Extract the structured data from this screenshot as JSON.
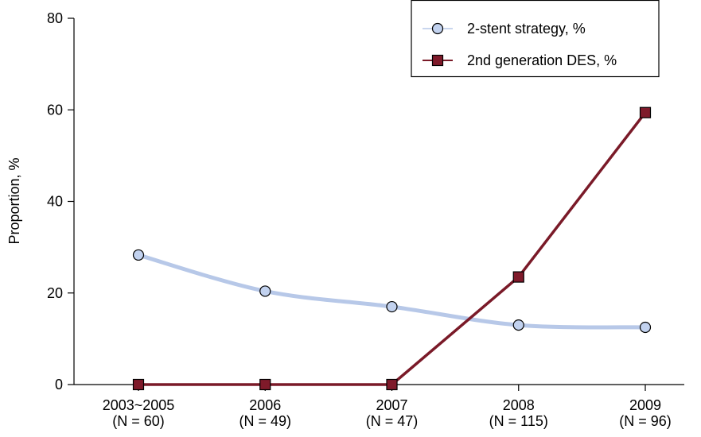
{
  "chart_data": {
    "type": "line",
    "ylabel": "Proportion, %",
    "xlabel": "",
    "ylim": [
      0,
      80
    ],
    "yticks": [
      0,
      20,
      40,
      60,
      80
    ],
    "categories": [
      {
        "year": "2003~2005",
        "n": "(N = 60)"
      },
      {
        "year": "2006",
        "n": "(N = 49)"
      },
      {
        "year": "2007",
        "n": "(N = 47)"
      },
      {
        "year": "2008",
        "n": "(N = 115)"
      },
      {
        "year": "2009",
        "n": "(N = 96)"
      }
    ],
    "series": [
      {
        "name": "2-stent strategy, %",
        "marker": "circle",
        "line_color": "#b7c8e8",
        "marker_fill": "#c2d2ef",
        "values": [
          28.3,
          20.4,
          17.0,
          13.0,
          12.5
        ]
      },
      {
        "name": "2nd generation DES, %",
        "marker": "square",
        "line_color": "#7a1a28",
        "marker_fill": "#7f1a2a",
        "values": [
          0,
          0,
          0,
          23.5,
          59.4
        ]
      }
    ],
    "legend_position": "top-right",
    "grid": false
  }
}
